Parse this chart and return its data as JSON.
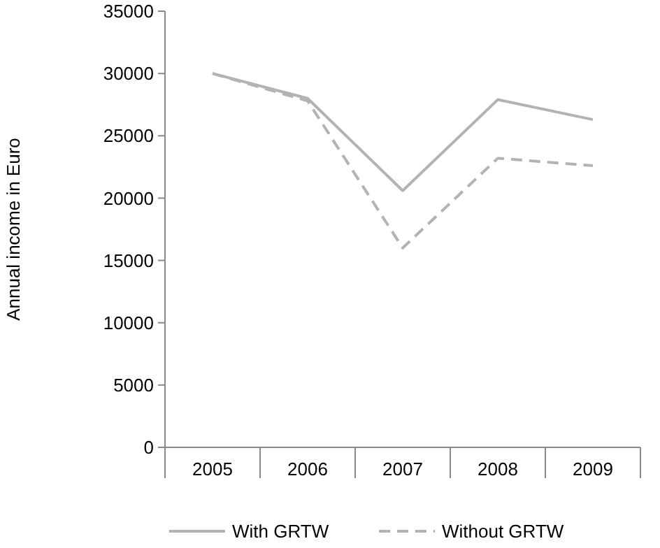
{
  "chart_data": {
    "type": "line",
    "ylabel": "Annual income in Euro",
    "categories": [
      "2005",
      "2006",
      "2007",
      "2008",
      "2009"
    ],
    "series": [
      {
        "name": "With GRTW",
        "color": "#b3b3b3",
        "line_style": "solid",
        "values": [
          30000,
          28000,
          20600,
          27900,
          26300
        ]
      },
      {
        "name": "Without GRTW",
        "color": "#b3b3b3",
        "line_style": "dashed",
        "values": [
          30000,
          27800,
          16000,
          23200,
          22600
        ]
      }
    ],
    "ylim": [
      0,
      35000
    ],
    "yticks": [
      0,
      5000,
      10000,
      15000,
      20000,
      25000,
      30000,
      35000
    ],
    "grid": false,
    "legend": "bottom"
  }
}
